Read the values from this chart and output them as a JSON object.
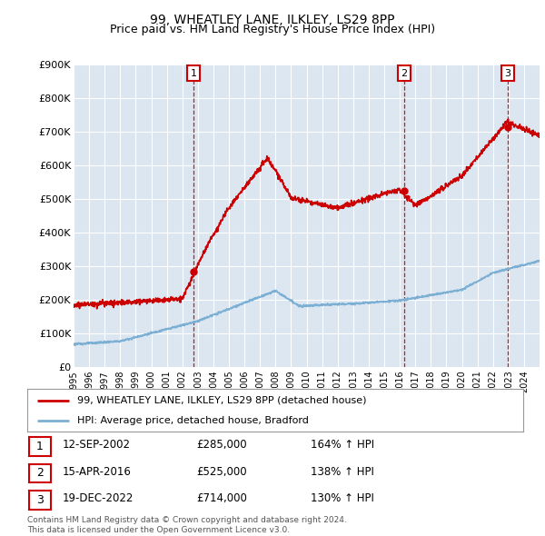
{
  "title": "99, WHEATLEY LANE, ILKLEY, LS29 8PP",
  "subtitle": "Price paid vs. HM Land Registry's House Price Index (HPI)",
  "ylim": [
    0,
    900000
  ],
  "yticks": [
    0,
    100000,
    200000,
    300000,
    400000,
    500000,
    600000,
    700000,
    800000,
    900000
  ],
  "ytick_labels": [
    "£0",
    "£100K",
    "£200K",
    "£300K",
    "£400K",
    "£500K",
    "£600K",
    "£700K",
    "£800K",
    "£900K"
  ],
  "xlim_start": 1995.0,
  "xlim_end": 2025.0,
  "sale_dates": [
    2002.71,
    2016.29,
    2022.96
  ],
  "sale_prices": [
    285000,
    525000,
    714000
  ],
  "sale_labels": [
    "1",
    "2",
    "3"
  ],
  "vline_color": "#cc0000",
  "red_line_color": "#cc0000",
  "blue_line_color": "#7bafd4",
  "plot_bg_color": "#dce6f1",
  "legend_entries": [
    "99, WHEATLEY LANE, ILKLEY, LS29 8PP (detached house)",
    "HPI: Average price, detached house, Bradford"
  ],
  "table_data": [
    [
      "1",
      "12-SEP-2002",
      "£285,000",
      "164% ↑ HPI"
    ],
    [
      "2",
      "15-APR-2016",
      "£525,000",
      "138% ↑ HPI"
    ],
    [
      "3",
      "19-DEC-2022",
      "£714,000",
      "130% ↑ HPI"
    ]
  ],
  "footer": "Contains HM Land Registry data © Crown copyright and database right 2024.\nThis data is licensed under the Open Government Licence v3.0.",
  "title_fontsize": 10,
  "subtitle_fontsize": 9
}
